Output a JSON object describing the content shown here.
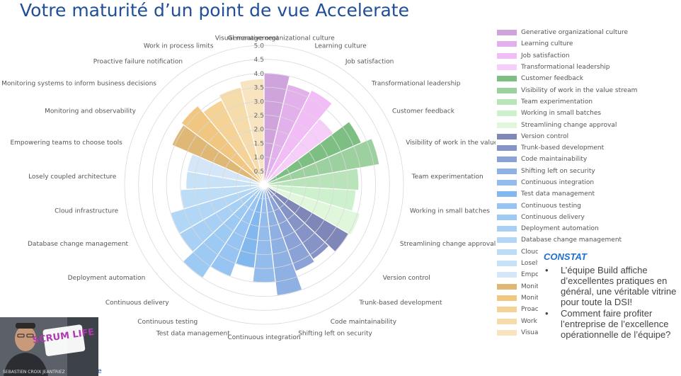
{
  "page": {
    "title": "Votre maturité d’un point de vue Accelerate"
  },
  "chart_data": {
    "type": "polar-area",
    "categories": [
      "Generative organizational culture",
      "Learning culture",
      "Job satisfaction",
      "Transformational leadership",
      "Customer feedback",
      "Visibility of work in the value stream",
      "Team experimentation",
      "Working in small batches",
      "Streamlining change approval",
      "Version control",
      "Trunk-based development",
      "Code maintainability",
      "Shifting left on security",
      "Continuous integration",
      "Test data management",
      "Continuous testing",
      "Continuous delivery",
      "Deployment automation",
      "Database change management",
      "Cloud infrastructure",
      "Losely coupled architecture",
      "Empowering teams to choose tools",
      "Monitoring and observability",
      "Monitoring systems to inform business decisions",
      "Proactive failure notification",
      "Work in process limits",
      "Visual management"
    ],
    "values": [
      4.0,
      3.7,
      3.8,
      3.1,
      3.8,
      4.2,
      3.4,
      3.3,
      3.6,
      3.5,
      3.2,
      3.3,
      4.0,
      3.5,
      3.0,
      3.5,
      4.0,
      3.5,
      3.5,
      3.0,
      2.8,
      2.8,
      3.6,
      3.7,
      3.4,
      3.6,
      3.8
    ],
    "colors": [
      "#cfa3dc",
      "#e2b0ea",
      "#f2bdf6",
      "#f7cdf9",
      "#7dbf83",
      "#9dd09f",
      "#b9e3b9",
      "#cdf0cd",
      "#e0f7dc",
      "#7f86b8",
      "#8593c7",
      "#8ba2d6",
      "#8fb0e3",
      "#93bcec",
      "#83b8ee",
      "#97c4f2",
      "#9ccaf3",
      "#a8d0f4",
      "#b2d6f5",
      "#bddcf6",
      "#c7e1f7",
      "#d4e6f8",
      "#e0b876",
      "#f1c680",
      "#f5d396",
      "#f7dcab",
      "#f8e4c0"
    ],
    "rlim": [
      0,
      5
    ],
    "r_ticks": [
      "0.5",
      "1.0",
      "1.5",
      "2.0",
      "2.5",
      "3.0",
      "3.5",
      "4.0",
      "4.5",
      "5.0"
    ],
    "grid": true,
    "legend_position": "right",
    "legend_labels": [
      "Generative organizational culture",
      "Learning culture",
      "Job satisfaction",
      "Transformational leadership",
      "Customer feedback",
      "Visibility of work in the value stream",
      "Team experimentation",
      "Working in small batches",
      "Streamlining change approval",
      "Version control",
      "Trunk-based development",
      "Code maintainability",
      "Shifting left on security",
      "Continuous integration",
      "Test data management",
      "Continuous testing",
      "Continuous delivery",
      "Deployment automation",
      "Database change management",
      "Cloud",
      "Losely",
      "Empo",
      "Monit",
      "Monit",
      "Proac",
      "Work",
      "Visua"
    ]
  },
  "constat": {
    "title": "CONSTAT",
    "bullets": [
      "L’équipe Build affiche d’excellentes pratiques en général, une véritable vitrine pour toute la DSI!",
      "Comment faire profiter l’entreprise de l’excellence opérationnelle de l’équipe?"
    ]
  },
  "video": {
    "logo": "SCRUM LIFE",
    "caption": "SEBASTIEN CROIX JEANTRIEZ",
    "icon": "person-webcam"
  },
  "overlap_char": "e"
}
